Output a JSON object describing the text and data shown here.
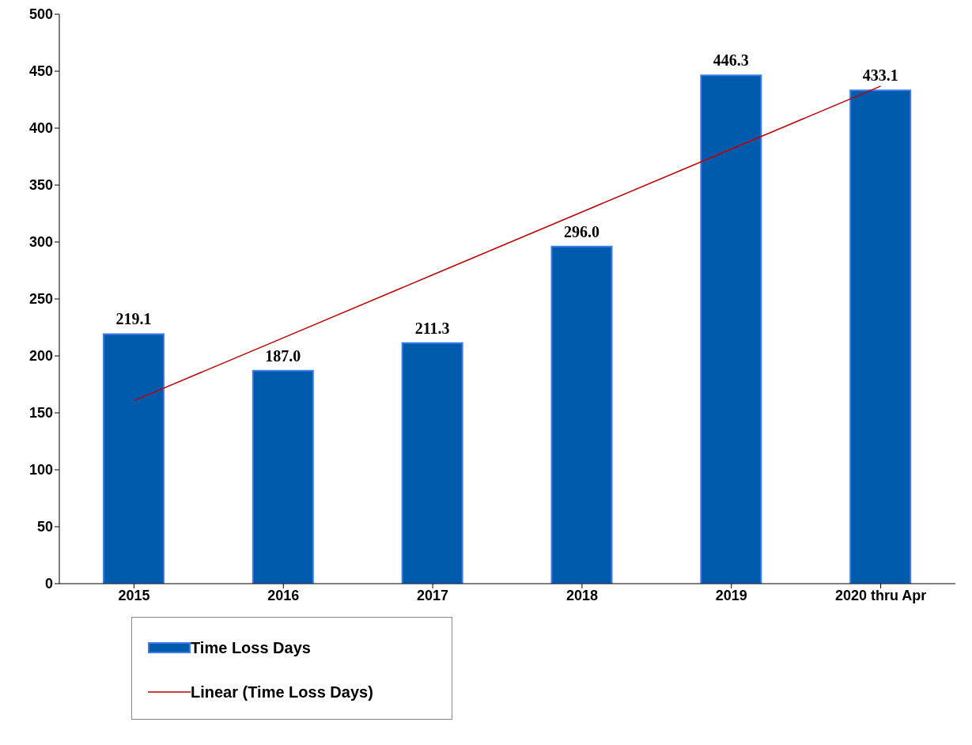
{
  "chart_data": {
    "type": "bar",
    "categories": [
      "2015",
      "2016",
      "2017",
      "2018",
      "2019",
      "2020 thru Apr"
    ],
    "series": [
      {
        "name": "Time Loss Days",
        "color": "#005bac",
        "values": [
          219.1,
          187.0,
          211.3,
          296.0,
          446.3,
          433.1
        ],
        "value_labels": [
          "219.1",
          "187.0",
          "211.3",
          "296.0",
          "446.3",
          "433.1"
        ]
      },
      {
        "name": "Linear (Time Loss Days)",
        "type": "line",
        "color": "#c00000",
        "values": [
          160.7,
          215.9,
          271.2,
          326.4,
          381.6,
          436.9
        ]
      }
    ],
    "ylim": [
      0,
      500
    ],
    "yticks": [
      0,
      50,
      100,
      150,
      200,
      250,
      300,
      350,
      400,
      450,
      500
    ],
    "legend": "bottom left",
    "marker": "none",
    "line_style": "solid"
  }
}
